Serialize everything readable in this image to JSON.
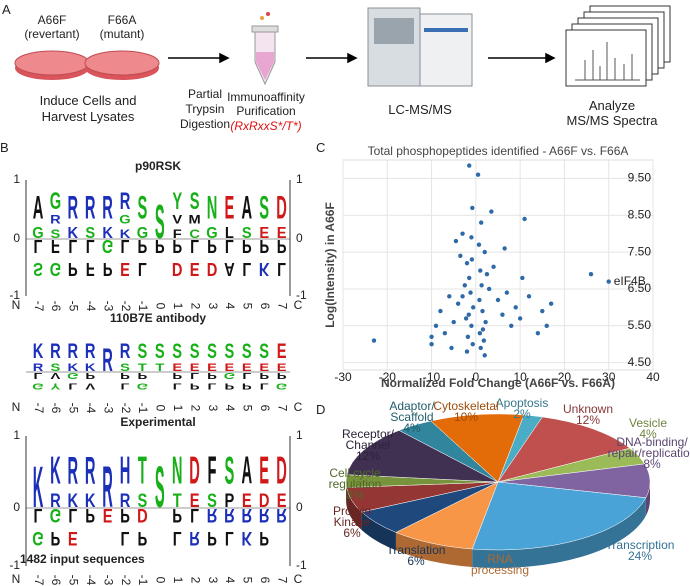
{
  "panel_labels": [
    "A",
    "B",
    "C",
    "D"
  ],
  "panel_a": {
    "strains": [
      {
        "name": "A66F",
        "note": "(revertant)"
      },
      {
        "name": "F66A",
        "note": "(mutant)"
      }
    ],
    "steps": [
      {
        "lines": [
          "Induce Cells and",
          "Harvest Lysates"
        ]
      },
      {
        "lines": [
          "Partial",
          "Trypsin",
          "Digestion"
        ]
      },
      {
        "lines": [
          "Immunoaffinity",
          "Purification"
        ],
        "motif": "(RxRxxS*/T*)"
      },
      {
        "lines": [
          "LC-MS/MS"
        ]
      },
      {
        "lines": [
          "Analyze",
          "MS/MS Spectra"
        ]
      }
    ]
  },
  "panel_b": {
    "positions": [
      "N",
      "-7",
      "-6",
      "-5",
      "-4",
      "-3",
      "-2",
      "-1",
      "0",
      "1",
      "2",
      "3",
      "4",
      "5",
      "6",
      "7",
      "C"
    ],
    "axis_labels": [
      "1",
      "0",
      "-1"
    ],
    "footnote": "1482 input sequences",
    "logos": [
      {
        "title": "p90RSK",
        "axis": true,
        "upper": [
          [
            "A",
            "G"
          ],
          [
            "G",
            "R",
            "S"
          ],
          [
            "R",
            "K"
          ],
          [
            "R",
            "S"
          ],
          [
            "R",
            "K"
          ],
          [
            "R",
            "G",
            "K"
          ],
          [
            "S",
            "G"
          ],
          [
            "S"
          ],
          [
            "Y",
            "V",
            "F"
          ],
          [
            "S",
            "M",
            "C"
          ],
          [
            "N",
            "G"
          ],
          [
            "E",
            "L"
          ],
          [
            "A",
            "S"
          ],
          [
            "S",
            "E"
          ],
          [
            "D",
            "E"
          ]
        ],
        "lower": [
          [
            "L",
            "S"
          ],
          [
            "F",
            "G"
          ],
          [
            "L",
            "P"
          ],
          [
            "L",
            "F"
          ],
          [
            "G",
            "P"
          ],
          [
            "L",
            "E"
          ],
          [
            "P",
            "L"
          ],
          [
            "P"
          ],
          [
            "P",
            "D"
          ],
          [
            "L",
            "E"
          ],
          [
            "P",
            "D"
          ],
          [
            "L",
            "A"
          ],
          [
            "P",
            "L"
          ],
          [
            "P",
            "K"
          ],
          [
            "P",
            "L"
          ]
        ]
      },
      {
        "title": "110B7E antibody",
        "axis": false,
        "upper": [
          [
            "K",
            "R"
          ],
          [
            "R",
            "S"
          ],
          [
            "R",
            "K"
          ],
          [
            "R",
            "K"
          ],
          [
            "R"
          ],
          [
            "R",
            "S"
          ],
          [
            "S",
            "T"
          ],
          [
            "S",
            "T"
          ],
          [
            "S",
            "E"
          ],
          [
            "S",
            "E"
          ],
          [
            "S",
            "E"
          ],
          [
            "S",
            "E"
          ],
          [
            "S",
            "E"
          ],
          [
            "S",
            "E"
          ],
          [
            "E",
            "E"
          ]
        ],
        "lower": [
          [
            "L",
            "G"
          ],
          [
            "V",
            "Y"
          ],
          [
            "G",
            "L"
          ],
          [
            "P",
            "V"
          ],
          [],
          [
            "P",
            "L"
          ],
          [
            "P",
            "G"
          ],
          [],
          [
            "P",
            "L"
          ],
          [
            "L",
            "P"
          ],
          [
            "P",
            "L"
          ],
          [
            "G",
            "P"
          ],
          [
            "L",
            "P"
          ],
          [
            "P",
            "L"
          ],
          [
            "P",
            "G"
          ]
        ]
      },
      {
        "title": "Experimental",
        "axis": true,
        "upper": [
          [
            "K"
          ],
          [
            "K",
            "R"
          ],
          [
            "R",
            "K"
          ],
          [
            "R",
            "K"
          ],
          [
            "R"
          ],
          [
            "H",
            "R"
          ],
          [
            "T",
            "S"
          ],
          [
            "S"
          ],
          [
            "N",
            "T"
          ],
          [
            "D",
            "E"
          ],
          [
            "F",
            "S"
          ],
          [
            "S",
            "P"
          ],
          [
            "A",
            "E"
          ],
          [
            "E",
            "D"
          ],
          [
            "D",
            "E"
          ]
        ],
        "lower": [
          [
            "L",
            "G"
          ],
          [
            "G",
            "P"
          ],
          [
            "L",
            "E"
          ],
          [
            "P"
          ],
          [
            "E"
          ],
          [
            "P",
            "L"
          ],
          [
            "D",
            "P"
          ],
          [],
          [
            "P",
            "L"
          ],
          [
            "L",
            "R"
          ],
          [
            "R",
            "P"
          ],
          [
            "R",
            "L"
          ],
          [
            "R",
            "K"
          ],
          [
            "R",
            "P"
          ],
          [
            "R"
          ]
        ]
      }
    ]
  },
  "chart_data": [
    {
      "type": "scatter",
      "title": "Total phosphopeptides identified - A66F vs. F66A",
      "x_label": "Normalized Fold Change (A66F vs. F66A)",
      "y_label": "Log(Intensity) in A66F",
      "color": "#2e6aa8",
      "grid": true,
      "xlim": [
        -30,
        40
      ],
      "xticks": [
        -30,
        -20,
        -10,
        0,
        10,
        20,
        30,
        40
      ],
      "ylim": [
        4.3,
        10.0
      ],
      "yticks": [
        {
          "value": 4.5,
          "label": "4.50"
        },
        {
          "value": 5.5,
          "label": "5.50"
        },
        {
          "value": 6.5,
          "label": "6.50"
        },
        {
          "value": 7.5,
          "label": "7.50"
        },
        {
          "value": 8.5,
          "label": "8.50"
        },
        {
          "value": 9.5,
          "label": "9.50"
        }
      ],
      "x": [
        -1.5,
        0.5,
        -0.8,
        1.2,
        -1,
        2,
        -2,
        1,
        -1.5,
        3,
        -3,
        0.8,
        -0.6,
        1.5,
        -2.2,
        2.2,
        -1,
        0.9,
        -1.8,
        1.8,
        -0.7,
        1.1,
        -2.5,
        2.5,
        -3.5,
        4,
        -4,
        5,
        6,
        7,
        8,
        9,
        10,
        12,
        15,
        16,
        17,
        14,
        10.5,
        6.5,
        -5,
        -6,
        -7,
        -8,
        -9,
        -10,
        -5.5,
        -4.5,
        -3,
        3.5,
        -1.2,
        1.3,
        -0.9,
        0.7,
        -1.6,
        1.6,
        -2,
        2,
        -23,
        -10,
        26,
        11,
        30
      ],
      "values": [
        9.85,
        9.6,
        8.7,
        8.3,
        7.9,
        7.5,
        7.2,
        7.0,
        6.8,
        6.5,
        6.3,
        6.2,
        6.0,
        5.9,
        5.7,
        5.6,
        5.5,
        5.3,
        5.2,
        5.1,
        5.0,
        4.9,
        6.6,
        6.9,
        7.4,
        7.1,
        6.1,
        6.2,
        5.8,
        6.4,
        5.5,
        6.0,
        5.7,
        6.3,
        5.9,
        5.5,
        6.1,
        5.3,
        6.8,
        7.6,
        5.6,
        6.3,
        5.3,
        5.9,
        5.5,
        5.2,
        4.9,
        7.8,
        8.0,
        8.6,
        6.4,
        6.6,
        7.3,
        7.7,
        5.8,
        5.4,
        4.8,
        4.7,
        5.1,
        5.0,
        6.9,
        8.4,
        6.7
      ],
      "annotation": {
        "text": "eIF4B",
        "x": 30,
        "y": 6.7
      }
    },
    {
      "type": "pie",
      "categories": [
        [
          "Apoptosis"
        ],
        [
          "Unknown"
        ],
        [
          "Vesicle"
        ],
        [
          "DNA-binding/",
          "repair/replication"
        ],
        [
          "Transcription"
        ],
        [
          "RNA",
          "processing"
        ],
        [
          "Translation"
        ],
        [
          "Protein",
          "Kinase"
        ],
        [
          "Cell cycle",
          "regulation"
        ],
        [
          "Receptor/",
          "Channel"
        ],
        [
          "Adaptor/",
          "Scaffold"
        ],
        [
          "Cytoskeletal"
        ]
      ],
      "values": [
        2,
        12,
        4,
        8,
        24,
        9,
        6,
        6,
        3,
        12,
        4,
        10
      ],
      "value_labels": [
        "2%",
        "12%",
        "4%",
        "8%",
        "24%",
        null,
        "6%",
        "6%",
        "3%",
        "12%",
        "4%",
        "10%"
      ],
      "colors": [
        "#4bacc6",
        "#c0504d",
        "#9bbb59",
        "#8064a2",
        "#4aa3d6",
        "#f79646",
        "#1f497d",
        "#943634",
        "#77933c",
        "#403152",
        "#31859c",
        "#e36c09"
      ]
    }
  ]
}
